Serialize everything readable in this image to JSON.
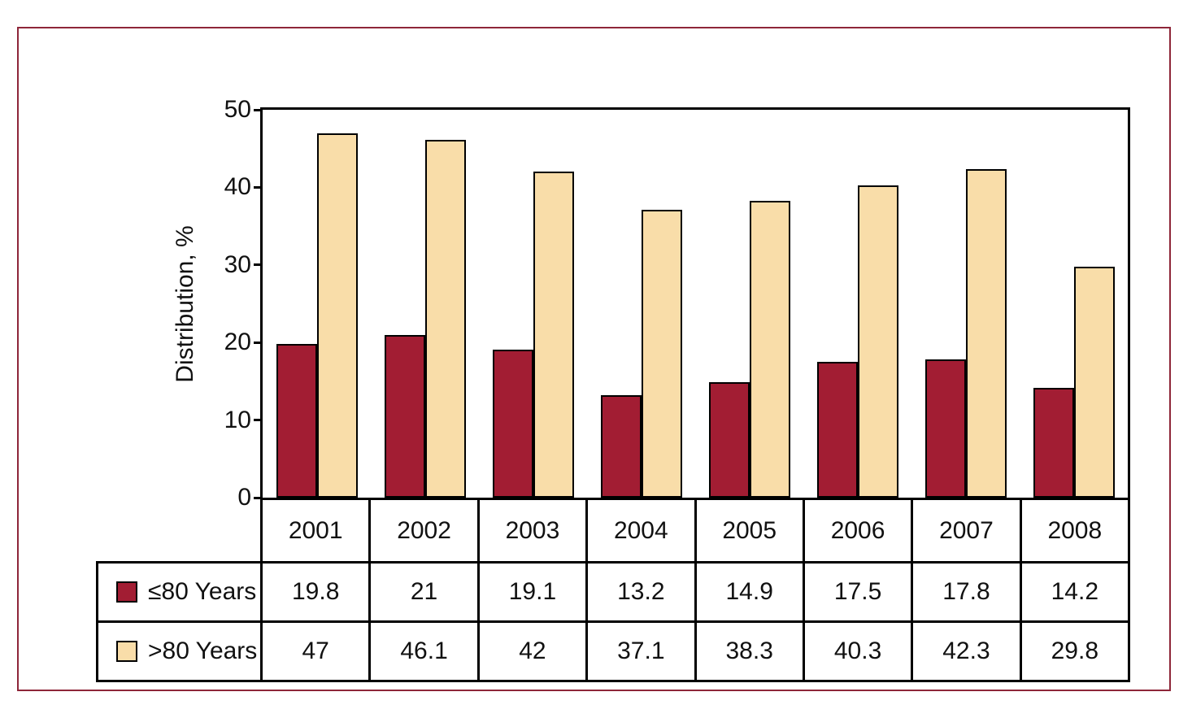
{
  "frame": {
    "border_color": "#8e2639"
  },
  "chart_data": {
    "type": "bar",
    "title": "",
    "xlabel": "",
    "ylabel": "Distribution, %",
    "categories": [
      "2001",
      "2002",
      "2003",
      "2004",
      "2005",
      "2006",
      "2007",
      "2008"
    ],
    "series": [
      {
        "name": "≤80 Years",
        "color": "#a21d33",
        "values": [
          19.8,
          21,
          19.1,
          13.2,
          14.9,
          17.5,
          17.8,
          14.2
        ]
      },
      {
        "name": ">80 Years",
        "color": "#f9dda9",
        "values": [
          47,
          46.1,
          42,
          37.1,
          38.3,
          40.3,
          42.3,
          29.8
        ]
      }
    ],
    "ylim": [
      0,
      50
    ],
    "yticks": [
      0,
      10,
      20,
      30,
      40,
      50
    ],
    "grid": false,
    "legend_position": "table-below",
    "bar_outline_color": "#000000"
  }
}
